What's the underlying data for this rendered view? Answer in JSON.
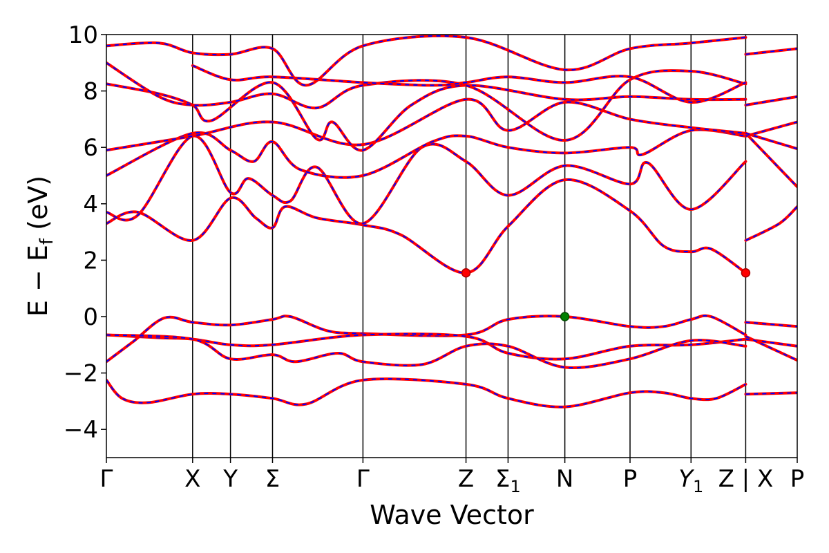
{
  "chart_data": {
    "type": "line",
    "xlabel": "Wave Vector",
    "ylabel": "E − E",
    "ylabel_sub": "f",
    "ylabel_unit": " (eV)",
    "ylim": [
      -5,
      10
    ],
    "yticks": [
      -4,
      -2,
      0,
      2,
      4,
      6,
      8,
      10
    ],
    "ytick_labels": [
      "−4",
      "−2",
      "0",
      "2",
      "4",
      "6",
      "8",
      "10"
    ],
    "xlim": [
      0,
      6.57
    ],
    "kpoints": [
      {
        "x": 0.0,
        "label": "Γ"
      },
      {
        "x": 0.82,
        "label": "X"
      },
      {
        "x": 1.18,
        "label": "Y"
      },
      {
        "x": 1.58,
        "label": "Σ"
      },
      {
        "x": 2.44,
        "label": "Γ"
      },
      {
        "x": 3.42,
        "label": "Z"
      },
      {
        "x": 3.82,
        "label": "Σ",
        "sub": "1"
      },
      {
        "x": 4.36,
        "label": "N"
      },
      {
        "x": 4.98,
        "label": "P"
      },
      {
        "x": 5.56,
        "label": "Y",
        "sub": "1",
        "italic": true
      },
      {
        "x": 6.08,
        "label": "Z | X"
      },
      {
        "x": 6.57,
        "label": "P"
      }
    ],
    "colors": {
      "bands_solid": "#ff0000",
      "bands_dashed": "#0000ff",
      "cbm": "#ff0000",
      "vbm": "#008000"
    },
    "series": [
      {
        "values": [
          [
            0,
            -2.25
          ],
          [
            0.15,
            -2.9
          ],
          [
            0.4,
            -3.05
          ],
          [
            0.82,
            -2.75
          ],
          [
            1.18,
            -2.75
          ],
          [
            1.58,
            -2.9
          ],
          [
            1.9,
            -3.1
          ],
          [
            2.44,
            -2.25
          ],
          [
            3.42,
            -2.4
          ],
          [
            3.82,
            -2.9
          ],
          [
            4.36,
            -3.2
          ],
          [
            4.98,
            -2.7
          ],
          [
            5.3,
            -2.7
          ],
          [
            5.56,
            -2.9
          ],
          [
            5.8,
            -2.9
          ],
          [
            6.08,
            -2.4
          ]
        ]
      },
      {
        "values": [
          [
            6.08,
            -2.75
          ],
          [
            6.57,
            -2.7
          ]
        ]
      },
      {
        "values": [
          [
            0,
            -1.6
          ],
          [
            0.25,
            -0.9
          ],
          [
            0.55,
            -0.05
          ],
          [
            0.82,
            -0.2
          ],
          [
            1.18,
            -0.3
          ],
          [
            1.58,
            -0.1
          ],
          [
            1.75,
            0.0
          ],
          [
            2.1,
            -0.5
          ],
          [
            2.44,
            -0.6
          ],
          [
            3.42,
            -0.65
          ],
          [
            3.82,
            -0.1
          ],
          [
            4.36,
            0.0
          ],
          [
            4.98,
            -0.35
          ],
          [
            5.3,
            -0.35
          ],
          [
            5.56,
            -0.1
          ],
          [
            5.75,
            0.0
          ],
          [
            6.08,
            -0.65
          ]
        ]
      },
      {
        "values": [
          [
            6.08,
            -0.2
          ],
          [
            6.57,
            -0.35
          ]
        ]
      },
      {
        "values": [
          [
            0,
            -0.65
          ],
          [
            0.5,
            -0.75
          ],
          [
            0.82,
            -0.8
          ],
          [
            1.18,
            -1.0
          ],
          [
            1.58,
            -1.0
          ],
          [
            2.44,
            -0.65
          ],
          [
            3.42,
            -0.7
          ],
          [
            3.82,
            -1.3
          ],
          [
            4.36,
            -1.5
          ],
          [
            4.98,
            -1.05
          ],
          [
            5.56,
            -1.0
          ],
          [
            6.08,
            -0.8
          ]
        ]
      },
      {
        "values": [
          [
            6.08,
            -0.8
          ],
          [
            6.57,
            -1.05
          ]
        ]
      },
      {
        "values": [
          [
            0,
            -0.65
          ],
          [
            0.82,
            -0.8
          ],
          [
            1.18,
            -1.5
          ],
          [
            1.58,
            -1.35
          ],
          [
            1.8,
            -1.6
          ],
          [
            2.2,
            -1.3
          ],
          [
            2.44,
            -1.6
          ],
          [
            3.0,
            -1.7
          ],
          [
            3.42,
            -1.05
          ],
          [
            3.82,
            -1.05
          ],
          [
            4.36,
            -1.8
          ],
          [
            4.98,
            -1.5
          ],
          [
            5.56,
            -0.85
          ],
          [
            6.08,
            -1.05
          ]
        ]
      },
      {
        "values": [
          [
            6.08,
            -0.7
          ],
          [
            6.57,
            -1.55
          ]
        ]
      },
      {
        "values": [
          [
            0,
            3.3
          ],
          [
            0.3,
            3.7
          ],
          [
            0.82,
            2.7
          ],
          [
            1.18,
            4.2
          ],
          [
            1.42,
            3.5
          ],
          [
            1.58,
            3.15
          ],
          [
            1.7,
            3.9
          ],
          [
            2.0,
            3.5
          ],
          [
            2.44,
            3.25
          ],
          [
            2.8,
            2.9
          ],
          [
            3.42,
            1.55
          ],
          [
            3.82,
            3.2
          ],
          [
            4.36,
            4.85
          ],
          [
            4.98,
            3.75
          ],
          [
            5.3,
            2.5
          ],
          [
            5.56,
            2.3
          ],
          [
            5.75,
            2.4
          ],
          [
            6.08,
            1.55
          ]
        ]
      },
      {
        "values": [
          [
            6.08,
            2.7
          ],
          [
            6.4,
            3.3
          ],
          [
            6.57,
            3.9
          ]
        ]
      },
      {
        "values": [
          [
            0,
            3.7
          ],
          [
            0.3,
            3.6
          ],
          [
            0.82,
            6.4
          ],
          [
            1.18,
            4.4
          ],
          [
            1.35,
            4.9
          ],
          [
            1.58,
            4.3
          ],
          [
            1.75,
            4.1
          ],
          [
            2.0,
            5.3
          ],
          [
            2.44,
            3.3
          ],
          [
            3.0,
            6.0
          ],
          [
            3.42,
            5.5
          ],
          [
            3.82,
            4.3
          ],
          [
            4.36,
            5.35
          ],
          [
            4.98,
            4.7
          ],
          [
            5.15,
            5.45
          ],
          [
            5.56,
            3.8
          ],
          [
            6.08,
            5.5
          ]
        ]
      },
      {
        "values": [
          [
            6.08,
            6.5
          ],
          [
            6.57,
            4.6
          ]
        ]
      },
      {
        "values": [
          [
            0,
            5.0
          ],
          [
            0.82,
            6.5
          ],
          [
            1.18,
            5.9
          ],
          [
            1.4,
            5.5
          ],
          [
            1.58,
            6.2
          ],
          [
            1.85,
            5.2
          ],
          [
            2.44,
            5.0
          ],
          [
            3.1,
            6.2
          ],
          [
            3.42,
            6.4
          ],
          [
            3.82,
            6.0
          ],
          [
            4.36,
            5.8
          ],
          [
            4.98,
            6.0
          ],
          [
            5.1,
            5.75
          ],
          [
            5.56,
            6.6
          ],
          [
            6.08,
            6.4
          ]
        ]
      },
      {
        "values": [
          [
            6.08,
            6.4
          ],
          [
            6.57,
            6.9
          ]
        ]
      },
      {
        "values": [
          [
            0,
            5.9
          ],
          [
            0.82,
            6.4
          ],
          [
            1.58,
            6.9
          ],
          [
            2.44,
            6.1
          ],
          [
            3.42,
            7.7
          ],
          [
            3.82,
            6.6
          ],
          [
            4.36,
            7.6
          ],
          [
            4.98,
            7.0
          ],
          [
            5.56,
            6.7
          ],
          [
            6.08,
            6.5
          ]
        ]
      },
      {
        "values": [
          [
            6.08,
            6.5
          ],
          [
            6.57,
            5.95
          ]
        ]
      },
      {
        "values": [
          [
            0,
            8.25
          ],
          [
            0.5,
            7.9
          ],
          [
            0.82,
            7.5
          ],
          [
            1.0,
            6.95
          ],
          [
            1.58,
            8.3
          ],
          [
            2.0,
            6.3
          ],
          [
            2.15,
            6.9
          ],
          [
            2.44,
            5.9
          ],
          [
            2.9,
            7.5
          ],
          [
            3.42,
            8.2
          ],
          [
            4.36,
            7.7
          ],
          [
            4.98,
            7.8
          ],
          [
            5.56,
            7.7
          ],
          [
            6.08,
            7.7
          ]
        ]
      },
      {
        "values": [
          [
            6.08,
            7.5
          ],
          [
            6.57,
            7.8
          ]
        ]
      },
      {
        "values": [
          [
            0,
            9.0
          ],
          [
            0.5,
            7.8
          ],
          [
            0.82,
            7.5
          ],
          [
            1.18,
            7.6
          ],
          [
            1.58,
            7.9
          ],
          [
            2.0,
            7.4
          ],
          [
            2.44,
            8.2
          ],
          [
            3.42,
            8.2
          ],
          [
            4.36,
            6.25
          ],
          [
            4.98,
            8.4
          ],
          [
            5.56,
            8.7
          ],
          [
            6.08,
            8.25
          ]
        ]
      },
      {
        "values": [
          [
            6.08,
            9.3
          ],
          [
            6.57,
            9.5
          ]
        ]
      },
      {
        "values": [
          [
            0,
            9.6
          ],
          [
            0.5,
            9.7
          ],
          [
            0.82,
            9.35
          ],
          [
            1.18,
            9.3
          ],
          [
            1.58,
            9.5
          ],
          [
            1.9,
            8.2
          ],
          [
            2.44,
            9.6
          ],
          [
            3.42,
            9.9
          ],
          [
            4.36,
            8.75
          ],
          [
            4.98,
            9.5
          ],
          [
            5.56,
            9.7
          ],
          [
            6.08,
            9.9
          ]
        ]
      },
      {
        "values": [
          [
            0.82,
            8.9
          ],
          [
            1.18,
            8.4
          ],
          [
            1.58,
            8.5
          ],
          [
            2.44,
            8.3
          ],
          [
            3.1,
            8.2
          ],
          [
            3.42,
            8.3
          ],
          [
            3.82,
            8.5
          ],
          [
            4.36,
            8.3
          ],
          [
            4.98,
            8.5
          ],
          [
            5.56,
            7.6
          ],
          [
            6.08,
            8.3
          ]
        ]
      }
    ],
    "markers": [
      {
        "x": 3.42,
        "y": 1.55,
        "kind": "cbm"
      },
      {
        "x": 6.08,
        "y": 1.55,
        "kind": "cbm"
      },
      {
        "x": 4.36,
        "y": 0.0,
        "kind": "vbm"
      }
    ]
  }
}
